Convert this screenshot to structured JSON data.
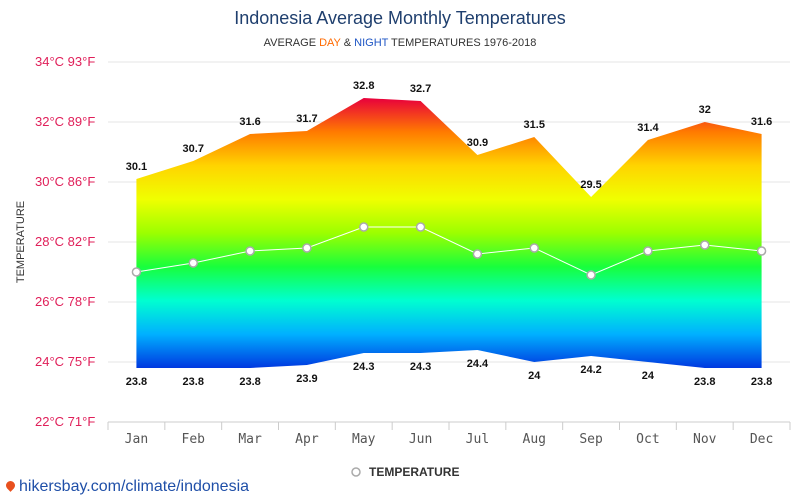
{
  "chart_data": {
    "type": "area",
    "title": "Indonesia Average Monthly Temperatures",
    "subtitle": {
      "prefix": "AVERAGE ",
      "day_word": "DAY",
      "middle": " & ",
      "night_word": "NIGHT",
      "suffix": " TEMPERATURES 1976-2018"
    },
    "ylabel": "TEMPERATURE",
    "categories": [
      "Jan",
      "Feb",
      "Mar",
      "Apr",
      "May",
      "Jun",
      "Jul",
      "Aug",
      "Sep",
      "Oct",
      "Nov",
      "Dec"
    ],
    "yticks": [
      {
        "value": 34,
        "label": "34°C 93°F"
      },
      {
        "value": 32,
        "label": "32°C 89°F"
      },
      {
        "value": 30,
        "label": "30°C 86°F"
      },
      {
        "value": 28,
        "label": "28°C 82°F"
      },
      {
        "value": 26,
        "label": "26°C 78°F"
      },
      {
        "value": 24,
        "label": "24°C 75°F"
      },
      {
        "value": 22,
        "label": "22°C 71°F"
      }
    ],
    "ylim": [
      22,
      34
    ],
    "grid": true,
    "series": [
      {
        "role": "day_max",
        "values": [
          30.1,
          30.7,
          31.6,
          31.7,
          32.8,
          32.7,
          30.9,
          31.5,
          29.5,
          31.4,
          32,
          31.6
        ]
      },
      {
        "name": "TEMPERATURE",
        "role": "average",
        "values": [
          27.0,
          27.3,
          27.7,
          27.8,
          28.5,
          28.5,
          27.6,
          27.8,
          26.9,
          27.7,
          27.9,
          27.7
        ]
      },
      {
        "role": "night_min",
        "values": [
          23.8,
          23.8,
          23.8,
          23.9,
          24.3,
          24.3,
          24.4,
          24,
          24.2,
          24,
          23.8,
          23.8
        ]
      }
    ],
    "legend": {
      "label": "TEMPERATURE",
      "position": "bottom-center"
    },
    "colors": {
      "gradient": [
        "#e8003c",
        "#ff7a00",
        "#ffd400",
        "#f0ff00",
        "#9cff00",
        "#18ff3c",
        "#00ffd0",
        "#00b0ff",
        "#0038e0"
      ],
      "average_line": "#ffffff",
      "marker_stroke": "#aaaaaa",
      "ytick": "#e0205a"
    }
  },
  "footer": {
    "source_text": "hikersbay.com/climate/indonesia"
  }
}
